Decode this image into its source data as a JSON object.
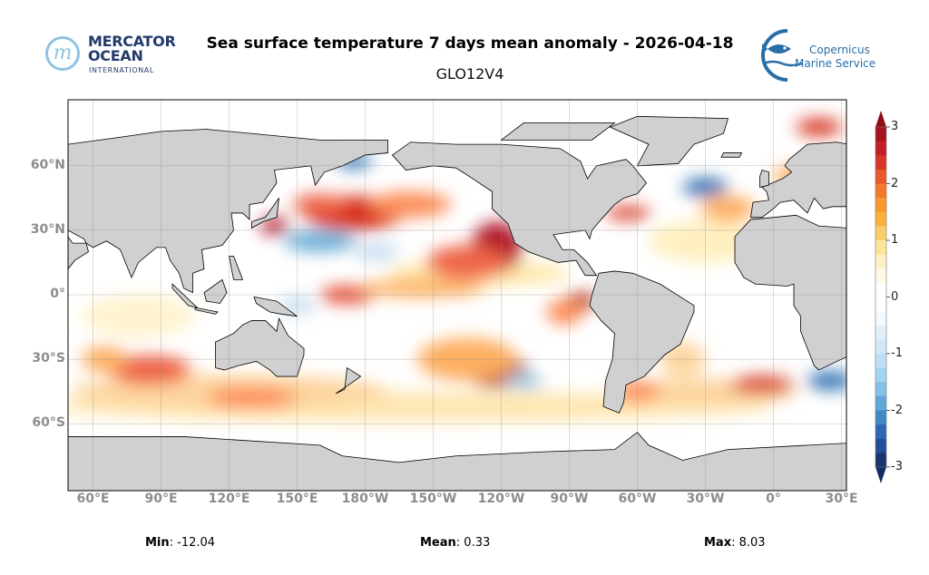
{
  "header": {
    "title": "Sea surface temperature 7 days mean anomaly - 2026-04-18",
    "subtitle": "GLO12V4"
  },
  "logos": {
    "mercator": {
      "line1": "MERCATOR",
      "line2": "OCEAN",
      "line3": "INTERNATIONAL",
      "mark": "m"
    },
    "copernicus": {
      "line1": "Copernicus",
      "line2": "Marine Service"
    }
  },
  "chart_data": {
    "type": "heatmap",
    "title": "Sea surface temperature 7 days mean anomaly - 2026-04-18",
    "subtitle": "GLO12V4",
    "x_ticks": [
      {
        "value": 60,
        "label": "60°E"
      },
      {
        "value": 90,
        "label": "90°E"
      },
      {
        "value": 120,
        "label": "120°E"
      },
      {
        "value": 150,
        "label": "150°E"
      },
      {
        "value": 180,
        "label": "180°W"
      },
      {
        "value": 210,
        "label": "150°W"
      },
      {
        "value": 240,
        "label": "120°W"
      },
      {
        "value": 270,
        "label": "90°W"
      },
      {
        "value": 300,
        "label": "60°W"
      },
      {
        "value": 330,
        "label": "30°W"
      },
      {
        "value": 360,
        "label": "0°"
      },
      {
        "value": 390,
        "label": "30°E"
      }
    ],
    "y_ticks": [
      {
        "value": 60,
        "label": "60°N"
      },
      {
        "value": 30,
        "label": "30°N"
      },
      {
        "value": 0,
        "label": "0°"
      },
      {
        "value": -30,
        "label": "30°S"
      },
      {
        "value": -60,
        "label": "60°S"
      }
    ],
    "grid": true,
    "colorbar": {
      "range": [
        -3,
        3
      ],
      "step": 0.25,
      "extend": "both",
      "ticks": [
        {
          "value": 3,
          "label": "3"
        },
        {
          "value": 2,
          "label": "2"
        },
        {
          "value": 1,
          "label": "1"
        },
        {
          "value": 0,
          "label": "0"
        },
        {
          "value": -1,
          "label": "-1"
        },
        {
          "value": -2,
          "label": "-2"
        },
        {
          "value": -3,
          "label": "-3"
        }
      ],
      "colors_top_to_bottom": [
        "#a3161d",
        "#c21f26",
        "#da3327",
        "#e9572a",
        "#f47a2a",
        "#f8992e",
        "#fbb23d",
        "#fccd6a",
        "#fde597",
        "#fef1c6",
        "#fff9e4",
        "#ffffff",
        "#ffffff",
        "#f3f9fe",
        "#e2f0fa",
        "#d1e9f7",
        "#bce0f4",
        "#a3d4f1",
        "#84c1e7",
        "#62a6d9",
        "#4287c6",
        "#2e68b0",
        "#214f98",
        "#1a3670"
      ],
      "over_color": "#8e1016",
      "under_color": "#162c5e"
    },
    "land_color": "#d0d0d0"
  },
  "stats": {
    "min_label": "Min",
    "min_value": "-12.04",
    "mean_label": "Mean",
    "mean_value": "0.33",
    "max_label": "Max",
    "max_value": "8.03"
  }
}
